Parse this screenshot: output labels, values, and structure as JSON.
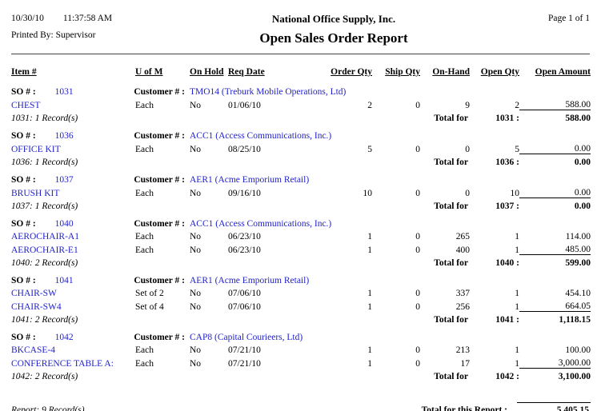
{
  "colors": {
    "link_blue": "#2222CC"
  },
  "header": {
    "date": "10/30/10",
    "time": "11:37:58 AM",
    "printed_by": "Printed By: Supervisor",
    "company": "National Office Supply, Inc.",
    "title": "Open Sales Order Report",
    "page_info": "Page 1 of 1"
  },
  "table": {
    "columns": [
      "Item #",
      "U of M",
      "On Hold",
      "Req Date",
      "Order Qty",
      "Ship Qty",
      "On-Hand",
      "Open Qty",
      "Open Amount"
    ],
    "groups": [
      {
        "so_label": "SO # :",
        "so_number": "1031",
        "customer_label": "Customer # :",
        "customer": "TMO14 (Treburk Mobile Operations, Ltd)",
        "items": [
          {
            "item": "CHEST",
            "uom": "Each",
            "on_hold": "No",
            "req_date": "01/06/10",
            "order_qty": "2",
            "ship_qty": "0",
            "on_hand": "9",
            "open_qty": "2",
            "open_amount": "588.00"
          }
        ],
        "record_count": "1031: 1 Record(s)",
        "total_label": "Total for",
        "total_so": "1031 :",
        "total_amount": "588.00"
      },
      {
        "so_label": "SO # :",
        "so_number": "1036",
        "customer_label": "Customer # :",
        "customer": "ACC1 (Access Communications, Inc.)",
        "items": [
          {
            "item": "OFFICE KIT",
            "uom": "Each",
            "on_hold": "No",
            "req_date": "08/25/10",
            "order_qty": "5",
            "ship_qty": "0",
            "on_hand": "0",
            "open_qty": "5",
            "open_amount": "0.00"
          }
        ],
        "record_count": "1036: 1 Record(s)",
        "total_label": "Total for",
        "total_so": "1036 :",
        "total_amount": "0.00"
      },
      {
        "so_label": "SO # :",
        "so_number": "1037",
        "customer_label": "Customer # :",
        "customer": "AER1 (Acme Emporium Retail)",
        "items": [
          {
            "item": "BRUSH KIT",
            "uom": "Each",
            "on_hold": "No",
            "req_date": "09/16/10",
            "order_qty": "10",
            "ship_qty": "0",
            "on_hand": "0",
            "open_qty": "10",
            "open_amount": "0.00"
          }
        ],
        "record_count": "1037: 1 Record(s)",
        "total_label": "Total for",
        "total_so": "1037 :",
        "total_amount": "0.00"
      },
      {
        "so_label": "SO # :",
        "so_number": "1040",
        "customer_label": "Customer # :",
        "customer": "ACC1 (Access Communications, Inc.)",
        "items": [
          {
            "item": "AEROCHAIR-A1",
            "uom": "Each",
            "on_hold": "No",
            "req_date": "06/23/10",
            "order_qty": "1",
            "ship_qty": "0",
            "on_hand": "265",
            "open_qty": "1",
            "open_amount": "114.00"
          },
          {
            "item": "AEROCHAIR-E1",
            "uom": "Each",
            "on_hold": "No",
            "req_date": "06/23/10",
            "order_qty": "1",
            "ship_qty": "0",
            "on_hand": "400",
            "open_qty": "1",
            "open_amount": "485.00"
          }
        ],
        "record_count": "1040: 2 Record(s)",
        "total_label": "Total for",
        "total_so": "1040 :",
        "total_amount": "599.00"
      },
      {
        "so_label": "SO # :",
        "so_number": "1041",
        "customer_label": "Customer # :",
        "customer": "AER1 (Acme Emporium Retail)",
        "items": [
          {
            "item": "CHAIR-SW",
            "uom": "Set of 2",
            "on_hold": "No",
            "req_date": "07/06/10",
            "order_qty": "1",
            "ship_qty": "0",
            "on_hand": "337",
            "open_qty": "1",
            "open_amount": "454.10"
          },
          {
            "item": "CHAIR-SW4",
            "uom": "Set of 4",
            "on_hold": "No",
            "req_date": "07/06/10",
            "order_qty": "1",
            "ship_qty": "0",
            "on_hand": "256",
            "open_qty": "1",
            "open_amount": "664.05"
          }
        ],
        "record_count": "1041: 2 Record(s)",
        "total_label": "Total for",
        "total_so": "1041 :",
        "total_amount": "1,118.15"
      },
      {
        "so_label": "SO # :",
        "so_number": "1042",
        "customer_label": "Customer # :",
        "customer": "CAP8 (Capital Courieers, Ltd)",
        "items": [
          {
            "item": "BKCASE-4",
            "uom": "Each",
            "on_hold": "No",
            "req_date": "07/21/10",
            "order_qty": "1",
            "ship_qty": "0",
            "on_hand": "213",
            "open_qty": "1",
            "open_amount": "100.00"
          },
          {
            "item": "CONFERENCE TABLE A:",
            "uom": "Each",
            "on_hold": "No",
            "req_date": "07/21/10",
            "order_qty": "1",
            "ship_qty": "0",
            "on_hand": "17",
            "open_qty": "1",
            "open_amount": "3,000.00"
          }
        ],
        "record_count": "1042: 2 Record(s)",
        "total_label": "Total for",
        "total_so": "1042 :",
        "total_amount": "3,100.00"
      }
    ]
  },
  "footer": {
    "record_count": "Report: 9 Record(s)",
    "total_label": "Total for this Report :",
    "total_amount": "5,405.15"
  }
}
